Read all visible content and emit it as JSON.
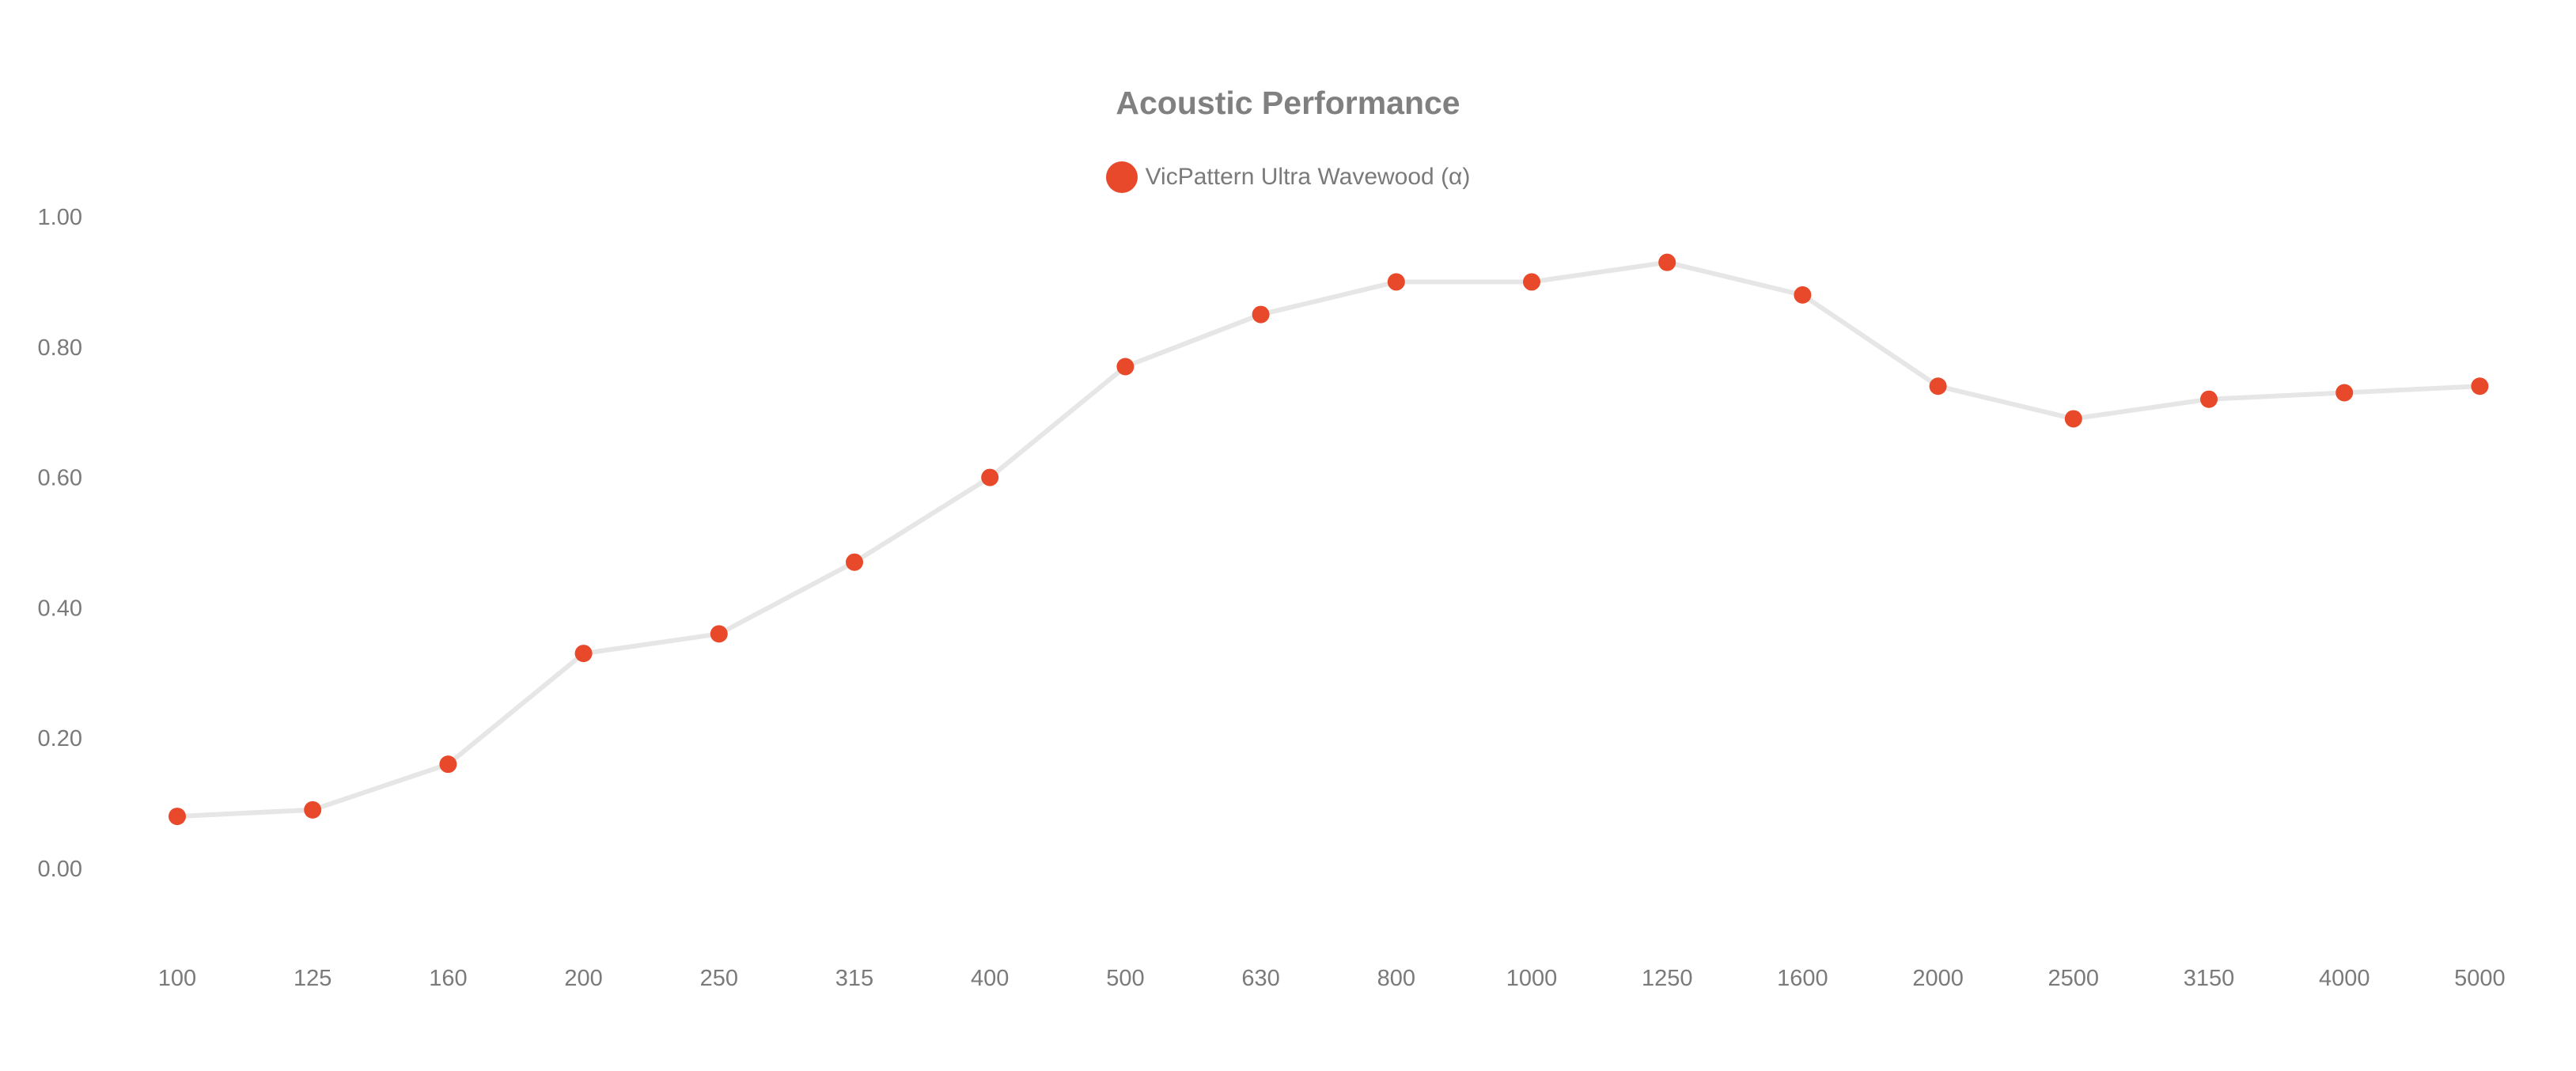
{
  "colors": {
    "point": "#E8492A",
    "line": "#E6E6E6",
    "text": "#7A7A7A",
    "title": "#808080"
  },
  "chart_data": {
    "type": "line",
    "title": "Acoustic Performance",
    "xlabel": "",
    "ylabel": "",
    "grid": false,
    "legend_position": "top-center",
    "categories": [
      "100",
      "125",
      "160",
      "200",
      "250",
      "315",
      "400",
      "500",
      "630",
      "800",
      "1000",
      "1250",
      "1600",
      "2000",
      "2500",
      "3150",
      "4000",
      "5000"
    ],
    "y_ticks": [
      "0.00",
      "0.20",
      "0.40",
      "0.60",
      "0.80",
      "1.00"
    ],
    "ylim": [
      -0.1,
      1.0
    ],
    "series": [
      {
        "name": "VicPattern Ultra Wavewood (α)",
        "values": [
          0.08,
          0.09,
          0.16,
          0.33,
          0.36,
          0.47,
          0.6,
          0.77,
          0.85,
          0.9,
          0.9,
          0.93,
          0.88,
          0.74,
          0.69,
          0.72,
          0.73,
          0.74
        ]
      }
    ]
  }
}
